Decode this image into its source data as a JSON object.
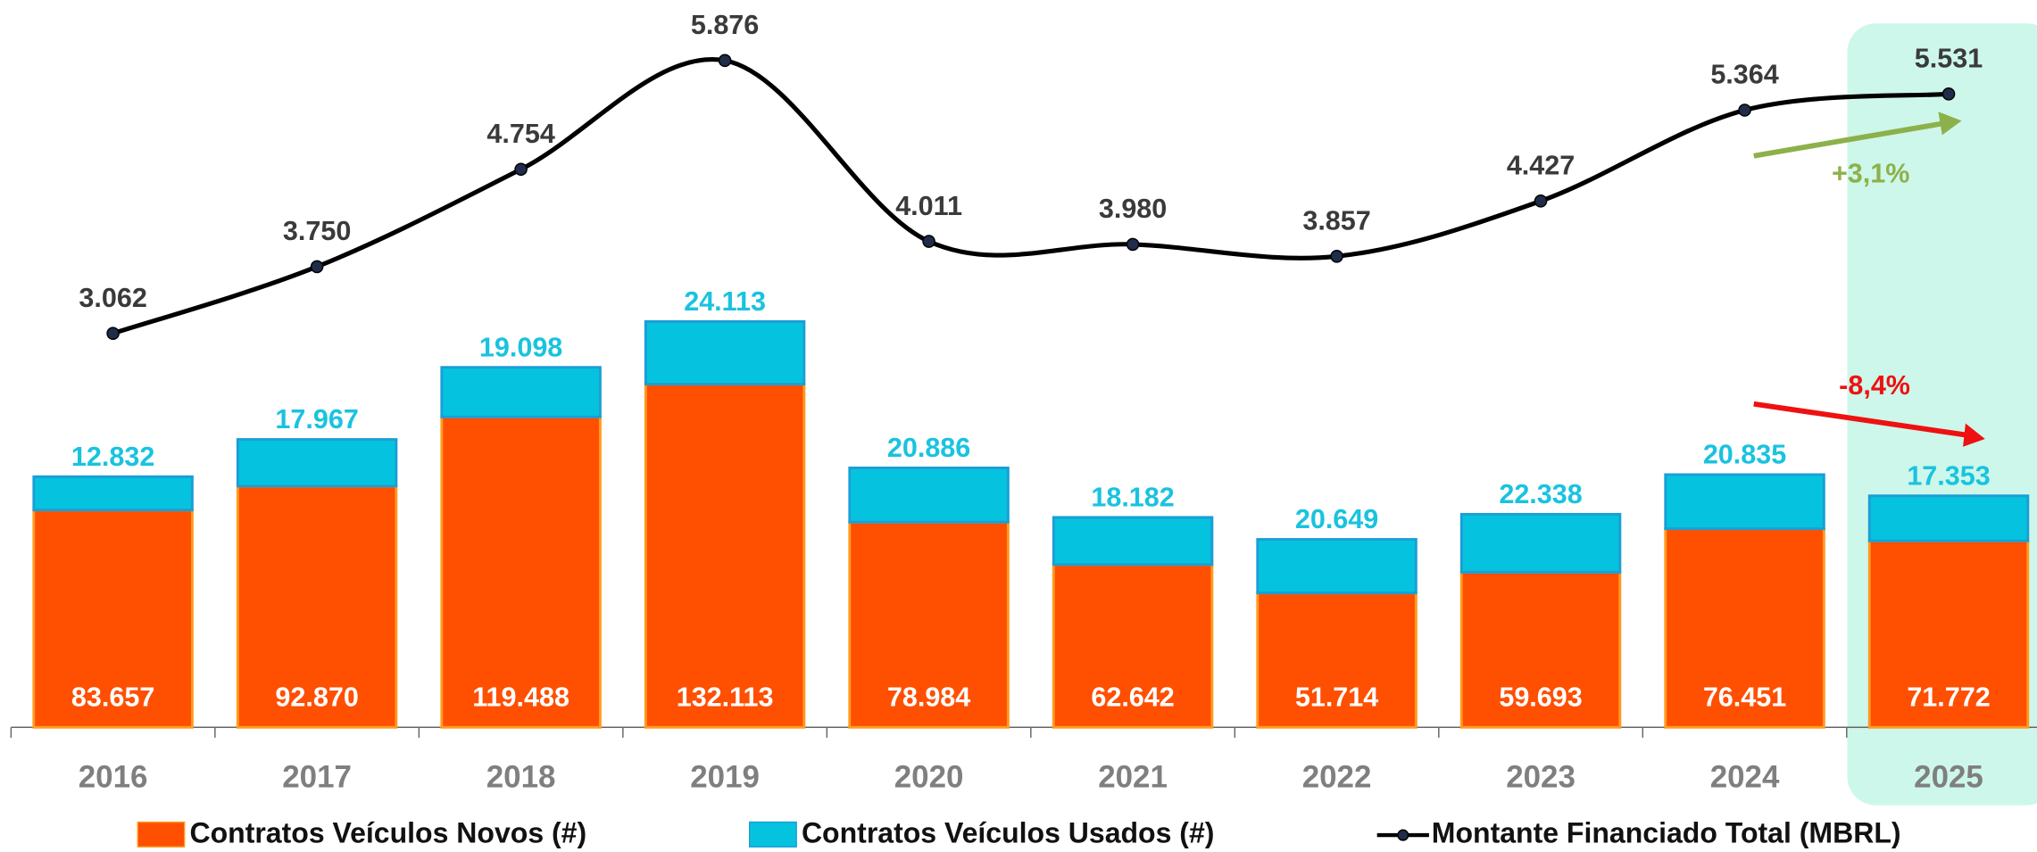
{
  "chart_data": {
    "type": "bar",
    "stacked": true,
    "categories": [
      "2016",
      "2017",
      "2018",
      "2019",
      "2020",
      "2021",
      "2022",
      "2023",
      "2024",
      "2025"
    ],
    "highlight_category": "2025",
    "highlight_color": "#cdf7ea",
    "ylim": [
      0,
      280000
    ],
    "y2lim": [
      -1000,
      6500
    ],
    "series": [
      {
        "name": "Contratos Veículos Novos (#)",
        "color": "#ff4f00",
        "edge": "#ff9a1f",
        "label_color": "#ffffff",
        "values": [
          83657,
          92870,
          119488,
          132113,
          78984,
          62642,
          51714,
          59693,
          76451,
          71772
        ],
        "value_labels": [
          "83.657",
          "92.870",
          "119.488",
          "132.113",
          "78.984",
          "62.642",
          "51.714",
          "59.693",
          "76.451",
          "71.772"
        ]
      },
      {
        "name": "Contratos Veículos Usados (#)",
        "color": "#05c3de",
        "edge": "#1a9ed6",
        "label_color": "#19c3df",
        "values": [
          12832,
          17967,
          19098,
          24113,
          20886,
          18182,
          20649,
          22338,
          20835,
          17353
        ],
        "value_labels": [
          "12.832",
          "17.967",
          "19.098",
          "24.113",
          "20.886",
          "18.182",
          "20.649",
          "22.338",
          "20.835",
          "17.353"
        ]
      },
      {
        "name": "Montante Financiado Total (MBRL)",
        "type": "line",
        "axis": "y2",
        "color": "#000000",
        "marker_color": "#1f2d4a",
        "label_color": "#3a3a3a",
        "values": [
          3062,
          3750,
          4754,
          5876,
          4011,
          3980,
          3857,
          4427,
          5364,
          5531
        ],
        "value_labels": [
          "3.062",
          "3.750",
          "4.754",
          "5.876",
          "4.011",
          "3.980",
          "3.857",
          "4.427",
          "5.364",
          "5.531"
        ]
      }
    ],
    "annotations": [
      {
        "text": "+3,1%",
        "color": "#8db14a"
      },
      {
        "text": "-8,4%",
        "color": "#ee1111"
      }
    ]
  }
}
